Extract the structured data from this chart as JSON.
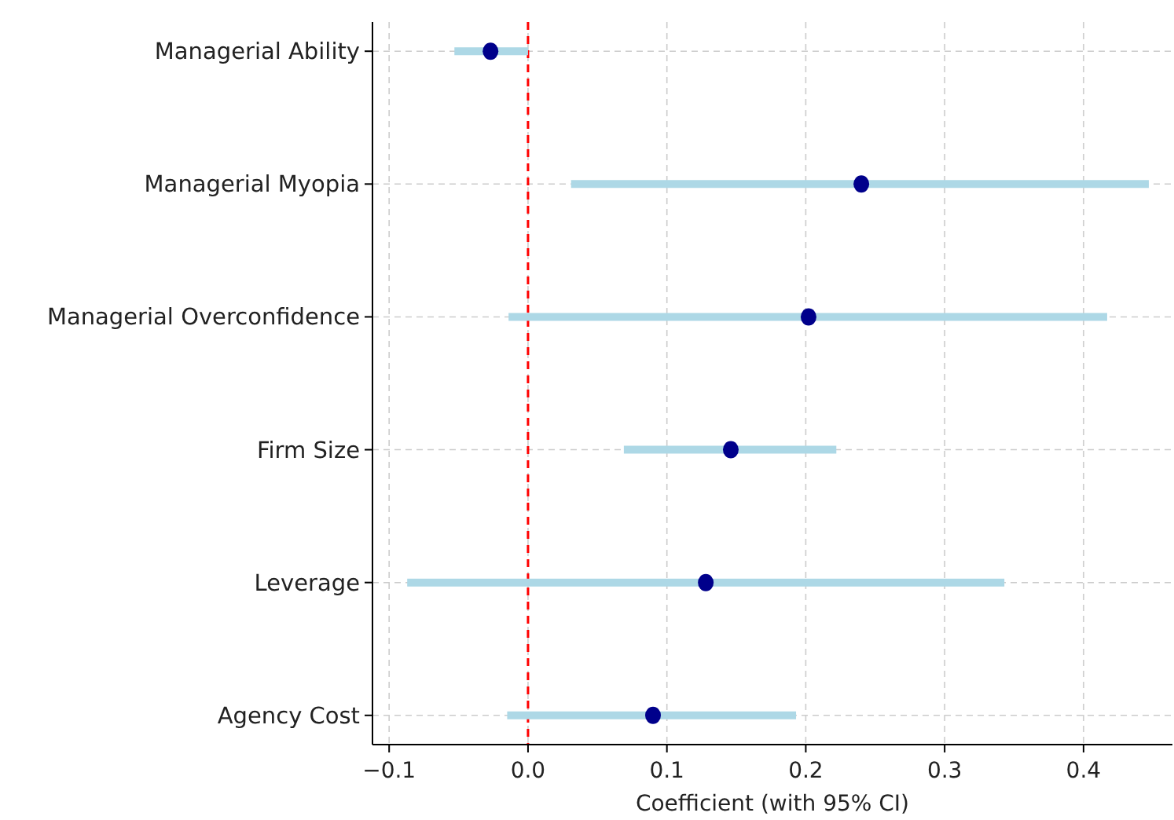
{
  "chart_data": {
    "type": "scatter",
    "orientation": "horizontal",
    "xlabel": "Coefficient (with 95% CI)",
    "categories": [
      "Managerial Ability",
      "Managerial Myopia",
      "Managerial Overconfidence",
      "Firm Size",
      "Leverage",
      "Agency Cost"
    ],
    "series": [
      {
        "color": "#00008b",
        "values": [
          -0.027,
          0.24,
          0.202,
          0.146,
          0.128,
          0.09
        ],
        "errors": [
          [
            -0.053,
            0.0
          ],
          [
            0.031,
            0.447
          ],
          [
            -0.014,
            0.417
          ],
          [
            0.069,
            0.222
          ],
          [
            -0.087,
            0.343
          ],
          [
            -0.015,
            0.193
          ]
        ]
      }
    ],
    "xlim": [
      -0.112,
      0.464
    ],
    "xticks": [
      {
        "value": -0.1,
        "label": "−0.1"
      },
      {
        "value": 0,
        "label": "0.0"
      },
      {
        "value": 0.1,
        "label": "0.1"
      },
      {
        "value": 0.2,
        "label": "0.2"
      },
      {
        "value": 0.3,
        "label": "0.3"
      },
      {
        "value": 0.4,
        "label": "0.4"
      }
    ],
    "grid": true,
    "marker": "circle",
    "ref_lines": [
      {
        "axis": "x",
        "value": 0,
        "color": "#ff0000",
        "line_style": "dashed"
      }
    ]
  }
}
